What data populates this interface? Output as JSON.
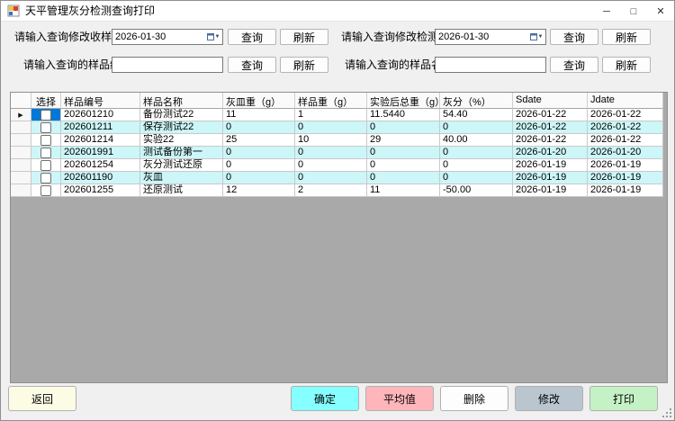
{
  "window": {
    "title": "天平管理灰分检测查询打印",
    "minimize_glyph": "─",
    "maximize_glyph": "□",
    "close_glyph": "✕"
  },
  "filters": {
    "receive_date": {
      "label": "请输入查询修改收样日期",
      "value": "2026-01-30",
      "query_label": "查询",
      "refresh_label": "刷新"
    },
    "test_date": {
      "label": "请输入查询修改检测日期",
      "value": "2026-01-30",
      "query_label": "查询",
      "refresh_label": "刷新"
    },
    "sample_no": {
      "label": "请输入查询的样品编号",
      "value": "",
      "query_label": "查询",
      "refresh_label": "刷新"
    },
    "sample_name": {
      "label": "请输入查询的样品名称",
      "value": "",
      "query_label": "查询",
      "refresh_label": "刷新"
    }
  },
  "grid": {
    "columns": [
      "选择",
      "样品编号",
      "样品名称",
      "灰皿重（g）",
      "样品重（g）",
      "实验后总重（g）",
      "灰分（%）",
      "Sdate",
      "Jdate"
    ],
    "selected_row_index": 0,
    "selection_color": "#0078d7",
    "alt_row_color": "#ccf6f7",
    "rows": [
      {
        "checked": false,
        "cells": [
          "202601210",
          "备份测试22",
          "11",
          "1",
          "11.5440",
          "54.40",
          "2026-01-22",
          "2026-01-22"
        ]
      },
      {
        "checked": false,
        "cells": [
          "202601211",
          "保存测试22",
          "0",
          "0",
          "0",
          "0",
          "2026-01-22",
          "2026-01-22"
        ]
      },
      {
        "checked": false,
        "cells": [
          "202601214",
          "实验22",
          "25",
          "10",
          "29",
          "40.00",
          "2026-01-22",
          "2026-01-22"
        ]
      },
      {
        "checked": false,
        "cells": [
          "202601991",
          "测试备份第一",
          "0",
          "0",
          "0",
          "0",
          "2026-01-20",
          "2026-01-20"
        ]
      },
      {
        "checked": false,
        "cells": [
          "202601254",
          "灰分测试还原",
          "0",
          "0",
          "0",
          "0",
          "2026-01-19",
          "2026-01-19"
        ]
      },
      {
        "checked": false,
        "cells": [
          "202601190",
          "灰皿",
          "0",
          "0",
          "0",
          "0",
          "2026-01-19",
          "2026-01-19"
        ]
      },
      {
        "checked": false,
        "cells": [
          "202601255",
          "还原测试",
          "12",
          "2",
          "11",
          "-50.00",
          "2026-01-19",
          "2026-01-19"
        ]
      }
    ]
  },
  "actions": [
    {
      "name": "return",
      "label": "返回",
      "color": "#fcfce5"
    },
    {
      "name": "confirm",
      "label": "确定",
      "color": "#85ffff"
    },
    {
      "name": "average",
      "label": "平均值",
      "color": "#ffb6bb"
    },
    {
      "name": "delete",
      "label": "删除",
      "color": "#fdfdfd"
    },
    {
      "name": "modify",
      "label": "修改",
      "color": "#b9c5cf"
    },
    {
      "name": "print",
      "label": "打印",
      "color": "#c5f2c4"
    }
  ]
}
